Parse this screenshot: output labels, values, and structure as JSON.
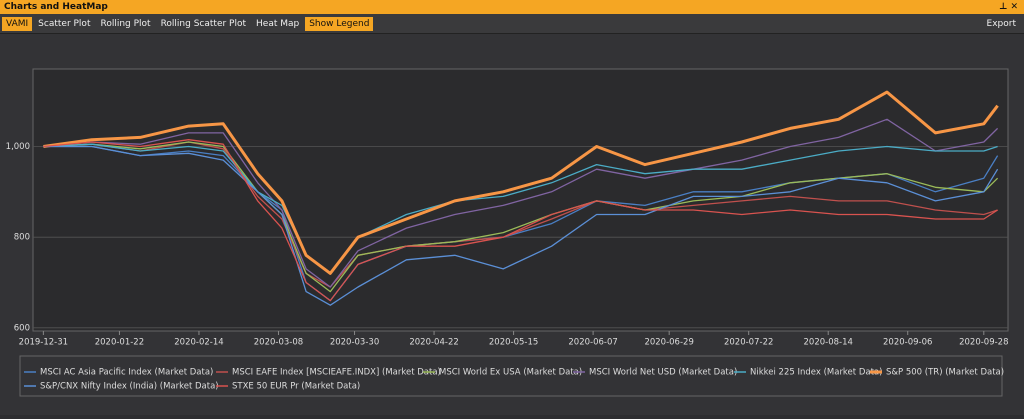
{
  "window": {
    "title": "Charts and HeatMap",
    "toolbar": [
      "VAMI",
      "Scatter Plot",
      "Rolling Plot",
      "Rolling Scatter Plot",
      "Heat Map",
      "Show Legend"
    ],
    "export": "Export"
  },
  "chart_data": {
    "type": "line",
    "x": [
      "2019-12-31",
      "2020-01-14",
      "2020-01-28",
      "2020-02-11",
      "2020-02-21",
      "2020-03-02",
      "2020-03-09",
      "2020-03-16",
      "2020-03-23",
      "2020-03-31",
      "2020-04-14",
      "2020-04-28",
      "2020-05-12",
      "2020-05-26",
      "2020-06-08",
      "2020-06-22",
      "2020-07-06",
      "2020-07-20",
      "2020-08-03",
      "2020-08-17",
      "2020-08-31",
      "2020-09-14",
      "2020-09-28",
      "2020-10-02"
    ],
    "xlim": [
      "2019-12-28",
      "2020-10-05"
    ],
    "xticks": [
      "2019-12-31",
      "2020-01-22",
      "2020-02-14",
      "2020-03-08",
      "2020-03-30",
      "2020-04-22",
      "2020-05-15",
      "2020-06-07",
      "2020-06-29",
      "2020-07-22",
      "2020-08-14",
      "2020-09-06",
      "2020-09-28"
    ],
    "ylim": [
      593,
      1171
    ],
    "yticks": [
      600,
      800,
      {
        "value": 1000,
        "label": "1,000"
      }
    ],
    "grid": true,
    "series": [
      {
        "name": "MSCI AC Asia Pacific Index (Market Data)",
        "color": "#4a7fc4",
        "values": [
          1000,
          1000,
          980,
          990,
          980,
          900,
          860,
          700,
          660,
          740,
          780,
          790,
          800,
          830,
          880,
          870,
          900,
          900,
          920,
          930,
          940,
          900,
          930,
          980
        ]
      },
      {
        "name": "MSCI EAFE Index [MSCIEAFE.INDX] (Market Data)",
        "color": "#c0504d",
        "values": [
          1000,
          1005,
          990,
          1010,
          995,
          890,
          840,
          720,
          690,
          760,
          780,
          790,
          800,
          840,
          880,
          860,
          870,
          880,
          890,
          880,
          880,
          860,
          850,
          860
        ]
      },
      {
        "name": "MSCI World Ex USA (Market Data)",
        "color": "#9bbb59",
        "values": [
          1000,
          1005,
          995,
          1010,
          1000,
          900,
          850,
          720,
          680,
          760,
          780,
          790,
          810,
          850,
          880,
          860,
          880,
          890,
          920,
          930,
          940,
          910,
          900,
          930
        ]
      },
      {
        "name": "MSCI World Net USD (Market Data)",
        "color": "#8064a2",
        "values": [
          1000,
          1010,
          1005,
          1030,
          1030,
          920,
          860,
          730,
          690,
          770,
          820,
          850,
          870,
          900,
          950,
          930,
          950,
          970,
          1000,
          1020,
          1060,
          990,
          1010,
          1040
        ]
      },
      {
        "name": "Nikkei 225 Index (Market Data)",
        "color": "#4bacc6",
        "values": [
          1000,
          1005,
          990,
          1000,
          990,
          900,
          870,
          760,
          720,
          800,
          850,
          880,
          890,
          920,
          960,
          940,
          950,
          950,
          970,
          990,
          1000,
          990,
          990,
          1000
        ]
      },
      {
        "name": "S&P 500 (TR) (Market Data)",
        "color": "#f79646",
        "values": [
          1000,
          1015,
          1020,
          1045,
          1050,
          940,
          880,
          760,
          720,
          800,
          840,
          880,
          900,
          930,
          1000,
          960,
          985,
          1010,
          1040,
          1060,
          1120,
          1030,
          1050,
          1090
        ]
      },
      {
        "name": "S&P/CNX Nifty Index (India) (Market Data)",
        "color": "#5b8fd6",
        "values": [
          1000,
          1000,
          980,
          985,
          970,
          900,
          850,
          680,
          650,
          690,
          750,
          760,
          730,
          780,
          850,
          850,
          890,
          890,
          900,
          930,
          920,
          880,
          900,
          950
        ]
      },
      {
        "name": "STXE 50 EUR Pr (Market Data)",
        "color": "#d9534f",
        "values": [
          1000,
          1010,
          1000,
          1015,
          1005,
          880,
          820,
          700,
          660,
          740,
          780,
          780,
          800,
          850,
          880,
          860,
          860,
          850,
          860,
          850,
          850,
          840,
          840,
          860
        ]
      }
    ]
  }
}
